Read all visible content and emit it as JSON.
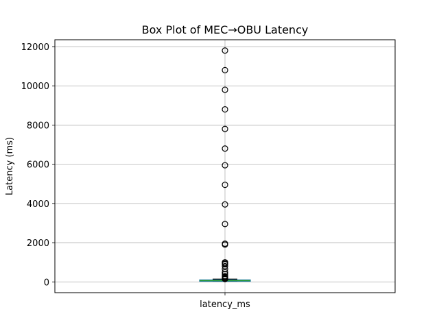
{
  "chart_data": {
    "type": "box",
    "title": "Box Plot of MEC→OBU Latency",
    "xlabel": "",
    "ylabel": "Latency (ms)",
    "categories": [
      "latency_ms"
    ],
    "ylim": [
      -550,
      12350
    ],
    "yticks": [
      0,
      2000,
      4000,
      6000,
      8000,
      10000,
      12000
    ],
    "grid": true,
    "box": {
      "whisker_low": 30,
      "q1": 50,
      "median": 65,
      "q3": 85,
      "whisker_high": 140
    },
    "outliers": [
      11800,
      10800,
      9800,
      8800,
      7800,
      6800,
      5950,
      4950,
      3950,
      2950,
      1950,
      1900,
      1000,
      950,
      900,
      800,
      650,
      500,
      400,
      300,
      250,
      200,
      180,
      160,
      150
    ],
    "colors": {
      "box": "#1f77b4",
      "median": "#2ca02c",
      "whisker": "#000000",
      "grid": "#b0b0b0"
    }
  }
}
